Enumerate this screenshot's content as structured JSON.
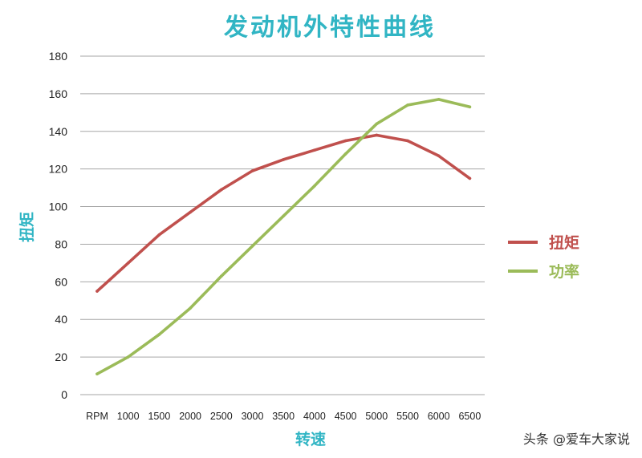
{
  "chart_data": {
    "type": "line",
    "title": "发动机外特性曲线",
    "xlabel": "转速",
    "ylabel": "扭矩",
    "categories": [
      "RPM",
      "1000",
      "1500",
      "2000",
      "2500",
      "3000",
      "3500",
      "4000",
      "4500",
      "5000",
      "5500",
      "6000",
      "6500"
    ],
    "ylim": [
      0,
      180
    ],
    "yticks": [
      0,
      20,
      40,
      60,
      80,
      100,
      120,
      140,
      160,
      180
    ],
    "grid": "horizontal",
    "legend_position": "right",
    "series": [
      {
        "name": "扭矩",
        "color": "#c0504d",
        "values": [
          55,
          70,
          85,
          97,
          109,
          119,
          125,
          130,
          135,
          138,
          135,
          127,
          115
        ]
      },
      {
        "name": "功率",
        "color": "#9bbb59",
        "values": [
          11,
          20,
          32,
          46,
          63,
          79,
          95,
          111,
          128,
          144,
          154,
          157,
          153
        ]
      }
    ],
    "colors": {
      "title": "#31b5c4",
      "axis_title": "#31b5c4",
      "grid": "#a6a6a6"
    }
  },
  "watermark": "头条 @爱车大家说"
}
